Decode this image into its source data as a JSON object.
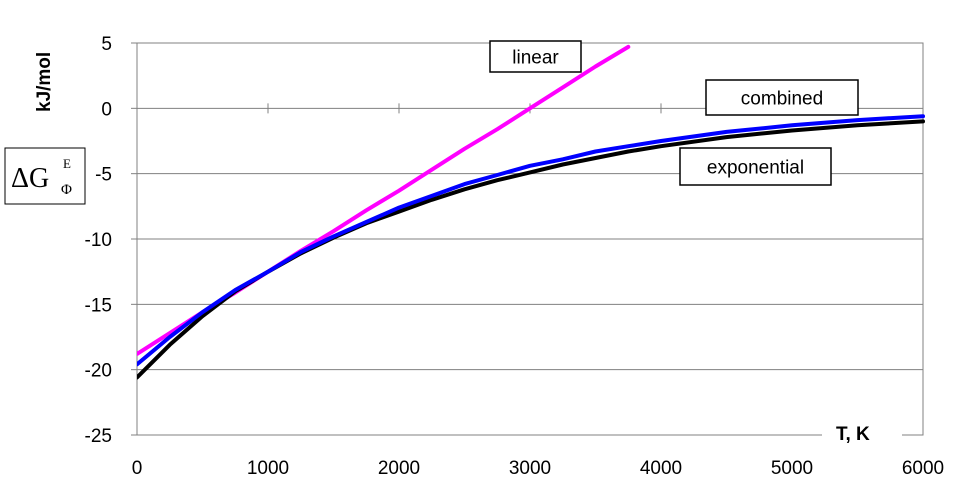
{
  "chart_data": {
    "type": "line",
    "title": "",
    "xlabel": "T, K",
    "ylabel": "kJ/mol",
    "ylabel_symbol": {
      "main": "ΔG",
      "sup": "E",
      "sub": "Φ"
    },
    "xlim": [
      0,
      6000
    ],
    "ylim": [
      -25,
      5
    ],
    "xticks": [
      0,
      1000,
      2000,
      3000,
      4000,
      5000,
      6000
    ],
    "yticks": [
      5,
      0,
      -5,
      -10,
      -15,
      -20,
      -25
    ],
    "grid": "horizontal",
    "legend": "none",
    "x": [
      0,
      250,
      500,
      750,
      1000,
      1250,
      1500,
      1750,
      2000,
      2250,
      2500,
      2750,
      3000,
      3250,
      3500,
      3750,
      4000,
      4500,
      5000,
      5500,
      6000
    ],
    "series": [
      {
        "name": "linear",
        "color": "#ff00ff",
        "values": [
          -18.8,
          -17.2,
          -15.6,
          -14.1,
          -12.5,
          -10.9,
          -9.4,
          -7.8,
          -6.3,
          -4.7,
          -3.1,
          -1.6,
          0.0,
          1.6,
          3.2,
          4.7,
          null,
          null,
          null,
          null,
          null
        ]
      },
      {
        "name": "combined",
        "color": "#0000ff",
        "values": [
          -19.6,
          -17.5,
          -15.6,
          -13.9,
          -12.5,
          -11.0,
          -9.8,
          -8.7,
          -7.6,
          -6.7,
          -5.8,
          -5.1,
          -4.4,
          -3.9,
          -3.3,
          -2.9,
          -2.5,
          -1.8,
          -1.3,
          -0.9,
          -0.6
        ]
      },
      {
        "name": "exponential",
        "color": "#000000",
        "values": [
          -20.6,
          -18.1,
          -15.9,
          -14.0,
          -12.5,
          -11.1,
          -9.9,
          -8.8,
          -7.9,
          -7.0,
          -6.2,
          -5.5,
          -4.9,
          -4.3,
          -3.8,
          -3.3,
          -2.9,
          -2.2,
          -1.7,
          -1.3,
          -1.0
        ]
      }
    ],
    "annotations": [
      {
        "text": "linear",
        "series": "linear"
      },
      {
        "text": "combined",
        "series": "combined"
      },
      {
        "text": "exponential",
        "series": "exponential"
      }
    ]
  }
}
